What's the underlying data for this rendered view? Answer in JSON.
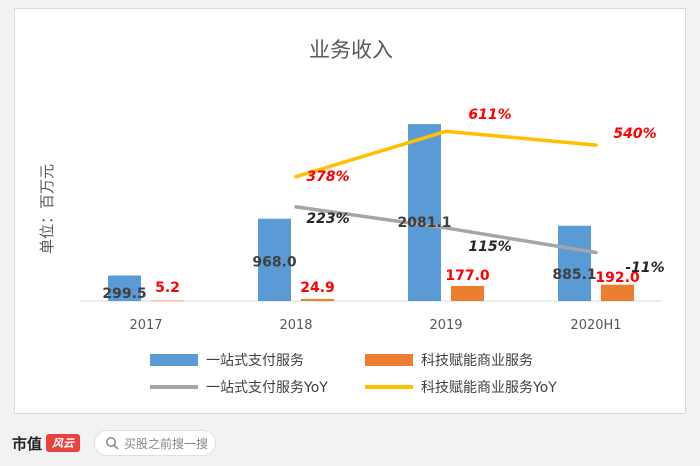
{
  "chart_data": {
    "type": "bar",
    "title": "业务收入",
    "ylabel": "单位：百万元",
    "categories": [
      "2017",
      "2018",
      "2019",
      "2020H1"
    ],
    "ylim": [
      0,
      2200
    ],
    "series": [
      {
        "name": "一站式支付服务",
        "type": "bar",
        "color": "#5b9bd5",
        "values": [
          299.5,
          968.0,
          2081.1,
          885.1
        ],
        "labels": [
          "299.5",
          "968.0",
          "2081.1",
          "885.1"
        ]
      },
      {
        "name": "科技赋能商业服务",
        "type": "bar",
        "color": "#ed7d31",
        "values": [
          5.2,
          24.9,
          177.0,
          192.0
        ],
        "labels": [
          "5.2",
          "24.9",
          "177.0",
          "192.0"
        ]
      },
      {
        "name": "一站式支付服务YoY",
        "type": "line",
        "color": "#a5a5a5",
        "values": [
          null,
          223,
          115,
          -11
        ],
        "labels": [
          null,
          "223%",
          "115%",
          "-11%"
        ]
      },
      {
        "name": "科技赋能商业服务YoY",
        "type": "line",
        "color": "#ffc000",
        "values": [
          null,
          378,
          611,
          540
        ],
        "labels": [
          null,
          "378%",
          "611%",
          "540%"
        ]
      }
    ],
    "yoy_range": [
      -260,
      700
    ],
    "grid": false,
    "legend_position": "bottom"
  },
  "footer": {
    "brand": "市值",
    "brand_logo": "风云",
    "search_placeholder": "买股之前搜一搜"
  }
}
